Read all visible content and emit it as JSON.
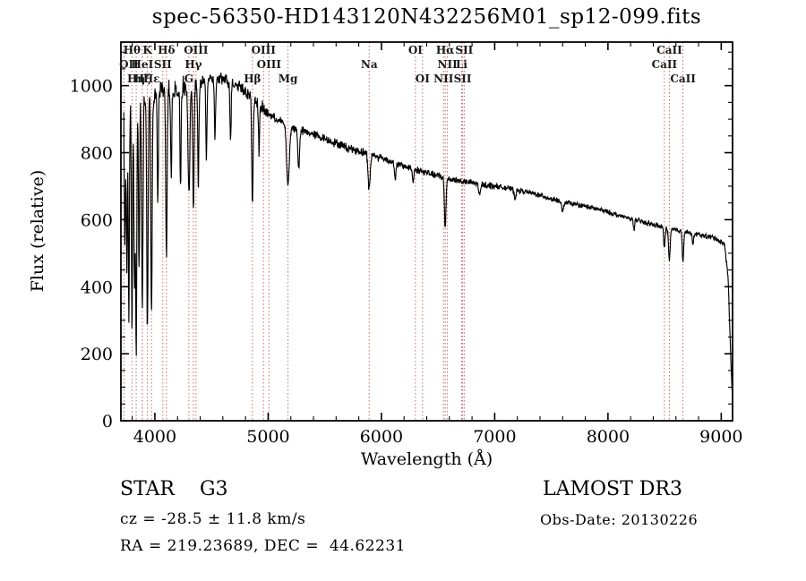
{
  "chart_data": {
    "type": "line",
    "title": "spec-56350-HD143120N432256M01_sp12-099.fits",
    "xlabel": "Wavelength (Å)",
    "ylabel": "Flux (relative)",
    "xlim": [
      3700,
      9100
    ],
    "ylim": [
      0,
      1130
    ],
    "xticks": [
      4000,
      5000,
      6000,
      7000,
      8000,
      9000
    ],
    "yticks": [
      0,
      200,
      400,
      600,
      800,
      1000
    ],
    "x_minor_step": 200,
    "y_minor_step": 50,
    "grid": false,
    "legend": "none",
    "line_color": "#000000",
    "marker_color": "#c46a6a",
    "spectral_lines": [
      {
        "wavelength": 3727,
        "label": "OII",
        "row": 2
      },
      {
        "wavelength": 3798,
        "label": "Hθ",
        "row": 1
      },
      {
        "wavelength": 3835,
        "label": "Hη",
        "row": 3
      },
      {
        "wavelength": 3889,
        "label": "HeI",
        "row": 2
      },
      {
        "wavelength": 3889,
        "label": "Hζ",
        "row": 3
      },
      {
        "wavelength": 3934,
        "label": "K",
        "row": 1
      },
      {
        "wavelength": 3970,
        "label": "Hε",
        "row": 3
      },
      {
        "wavelength": 4070,
        "label": "SII",
        "row": 2
      },
      {
        "wavelength": 4102,
        "label": "Hδ",
        "row": 1
      },
      {
        "wavelength": 4300,
        "label": "G",
        "row": 3
      },
      {
        "wavelength": 4340,
        "label": "Hγ",
        "row": 2
      },
      {
        "wavelength": 4363,
        "label": "OIII",
        "row": 1
      },
      {
        "wavelength": 4861,
        "label": "Hβ",
        "row": 3
      },
      {
        "wavelength": 4959,
        "label": "OIII",
        "row": 1
      },
      {
        "wavelength": 5007,
        "label": "OIII",
        "row": 2
      },
      {
        "wavelength": 5175,
        "label": "Mg",
        "row": 3
      },
      {
        "wavelength": 5892,
        "label": "Na",
        "row": 2
      },
      {
        "wavelength": 6300,
        "label": "OI",
        "row": 1
      },
      {
        "wavelength": 6363,
        "label": "OI",
        "row": 3
      },
      {
        "wavelength": 6548,
        "label": "NII",
        "row": 3
      },
      {
        "wavelength": 6563,
        "label": "Hα",
        "row": 1
      },
      {
        "wavelength": 6583,
        "label": "NII",
        "row": 2
      },
      {
        "wavelength": 6708,
        "label": "Li",
        "row": 2
      },
      {
        "wavelength": 6717,
        "label": "SII",
        "row": 3
      },
      {
        "wavelength": 6731,
        "label": "SII",
        "row": 1
      },
      {
        "wavelength": 8498,
        "label": "CaII",
        "row": 2
      },
      {
        "wavelength": 8542,
        "label": "CaII",
        "row": 1
      },
      {
        "wavelength": 8662,
        "label": "CaII",
        "row": 3
      }
    ],
    "spectrum": {
      "start": 3725,
      "end": 9100,
      "step": 3,
      "anchors": [
        [
          3725,
          960
        ],
        [
          3800,
          950
        ],
        [
          3900,
          960
        ],
        [
          4000,
          975
        ],
        [
          4150,
          985
        ],
        [
          4300,
          1000
        ],
        [
          4450,
          1015
        ],
        [
          4600,
          1020
        ],
        [
          4750,
          1000
        ],
        [
          4900,
          950
        ],
        [
          5000,
          915
        ],
        [
          5100,
          895
        ],
        [
          5250,
          870
        ],
        [
          5400,
          855
        ],
        [
          5550,
          835
        ],
        [
          5700,
          815
        ],
        [
          5850,
          800
        ],
        [
          6000,
          785
        ],
        [
          6150,
          765
        ],
        [
          6300,
          750
        ],
        [
          6450,
          735
        ],
        [
          6600,
          722
        ],
        [
          6750,
          712
        ],
        [
          6900,
          705
        ],
        [
          7050,
          698
        ],
        [
          7200,
          688
        ],
        [
          7350,
          678
        ],
        [
          7500,
          662
        ],
        [
          7650,
          650
        ],
        [
          7800,
          640
        ],
        [
          7950,
          628
        ],
        [
          8100,
          612
        ],
        [
          8250,
          598
        ],
        [
          8400,
          585
        ],
        [
          8550,
          572
        ],
        [
          8700,
          562
        ],
        [
          8850,
          552
        ],
        [
          8950,
          545
        ],
        [
          9030,
          525
        ],
        [
          9060,
          430
        ],
        [
          9080,
          230
        ],
        [
          9095,
          90
        ]
      ],
      "absorption": [
        [
          3735,
          430,
          5
        ],
        [
          3752,
          500,
          5
        ],
        [
          3770,
          640,
          5
        ],
        [
          3798,
          700,
          5
        ],
        [
          3820,
          560,
          5
        ],
        [
          3835,
          750,
          5
        ],
        [
          3860,
          520,
          5
        ],
        [
          3889,
          640,
          6
        ],
        [
          3934,
          690,
          6
        ],
        [
          3970,
          650,
          6
        ],
        [
          4026,
          330,
          5
        ],
        [
          4102,
          500,
          6
        ],
        [
          4144,
          260,
          5
        ],
        [
          4226,
          300,
          5
        ],
        [
          4300,
          330,
          8
        ],
        [
          4340,
          390,
          6
        ],
        [
          4383,
          310,
          5
        ],
        [
          4455,
          230,
          5
        ],
        [
          4531,
          180,
          5
        ],
        [
          4668,
          180,
          5
        ],
        [
          4861,
          320,
          6
        ],
        [
          4920,
          140,
          5
        ],
        [
          5175,
          180,
          12
        ],
        [
          5270,
          110,
          8
        ],
        [
          5892,
          105,
          9
        ],
        [
          6122,
          55,
          6
        ],
        [
          6280,
          40,
          6
        ],
        [
          6563,
          150,
          7
        ],
        [
          6867,
          35,
          8
        ],
        [
          7180,
          25,
          8
        ],
        [
          7600,
          28,
          10
        ],
        [
          8230,
          25,
          6
        ],
        [
          8498,
          60,
          6
        ],
        [
          8542,
          95,
          7
        ],
        [
          8662,
          85,
          6
        ],
        [
          8750,
          40,
          5
        ]
      ]
    }
  },
  "annotations": {
    "class_label": "STAR    G3",
    "survey": "LAMOST DR3",
    "cz": "cz = -28.5 ± 11.8 km/s",
    "obs_date": "Obs-Date: 20130226",
    "radec": "RA = 219.23689, DEC =  44.62231"
  }
}
